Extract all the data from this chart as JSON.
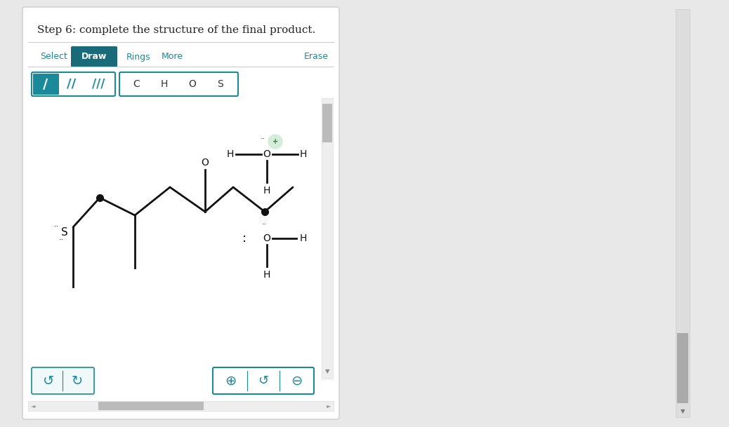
{
  "title": "Step 6: complete the structure of the final product.",
  "bg_color": "#e8e8e8",
  "panel_bg": "#ffffff",
  "teal_color": "#1a8a9a",
  "draw_btn_bg": "#1a6b7a",
  "bond_buttons": [
    "/",
    "//",
    "///"
  ],
  "atom_buttons": [
    "C",
    "H",
    "O",
    "S"
  ],
  "scrollbar_right_bg": "#bbbbbb",
  "scrollbar_right_thumb": "#999999"
}
